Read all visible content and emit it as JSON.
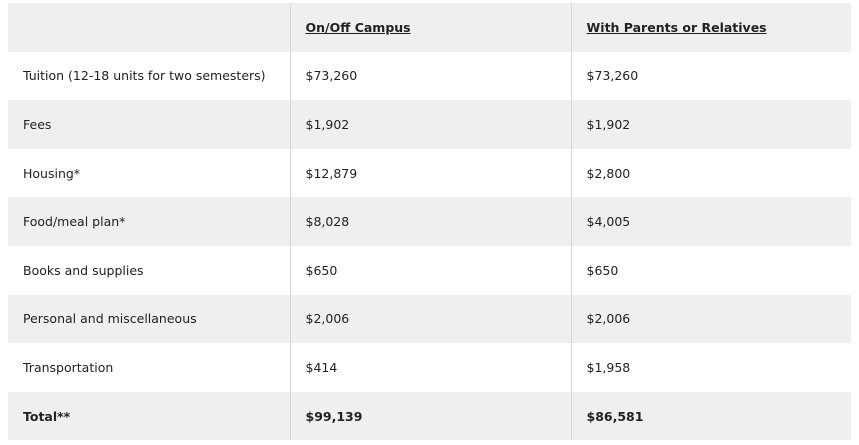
{
  "table": {
    "header": [
      "On/Off Campus",
      "With Parents or Relatives"
    ],
    "rows": [
      [
        "Tuition (12-18 units for two semesters)",
        "$73,260",
        "$73,260"
      ],
      [
        "Fees",
        "$1,902",
        "$1,902"
      ],
      [
        "Housing*",
        "$12,879",
        "$2,800"
      ],
      [
        "Food/meal plan*",
        "$8,028",
        "$4,005"
      ],
      [
        "Books and supplies",
        "$650",
        "$650"
      ],
      [
        "Personal and miscellaneous",
        "$2,006",
        "$2,006"
      ],
      [
        "Transportation",
        "$414",
        "$1,958"
      ]
    ],
    "total": [
      "Total**",
      "$99,139",
      "$86,581"
    ]
  }
}
